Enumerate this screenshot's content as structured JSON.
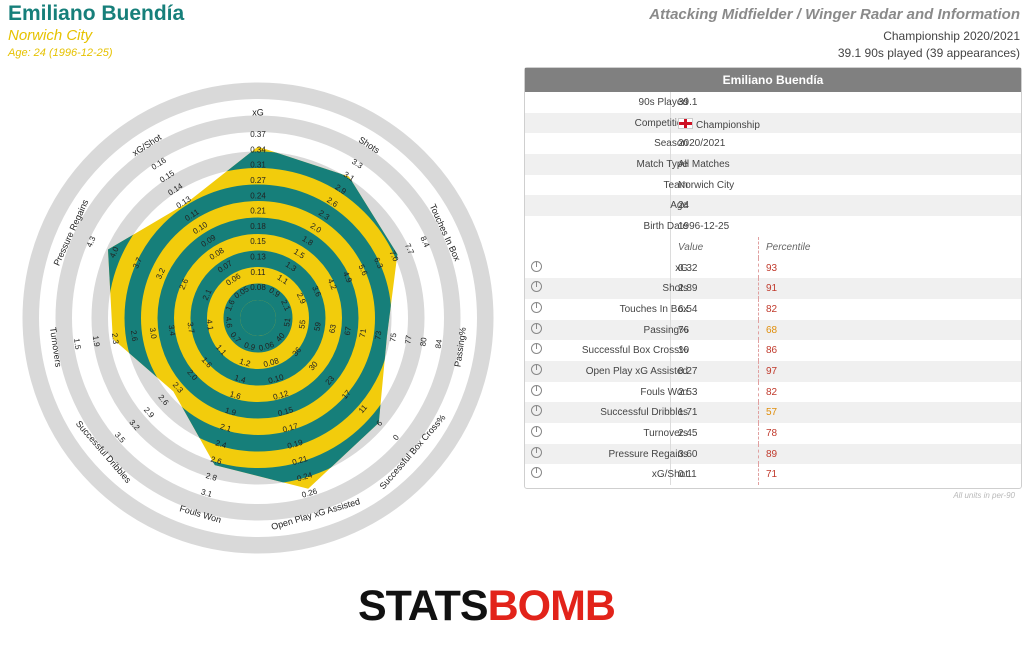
{
  "header": {
    "player_name": "Emiliano Buendía",
    "team": "Norwich City",
    "age_line": "Age: 24 (1996-12-25)",
    "radar_title": "Attacking Midfielder / Winger Radar and Information",
    "competition_line": "Championship 2020/2021",
    "played_line": "39.1 90s played (39 appearances)"
  },
  "colors": {
    "teal": "#167f7a",
    "gold": "#f2cc0c",
    "ring": "#d9d9d9",
    "header_bg": "#808080",
    "pct_red": "#c0392b",
    "pct_orange": "#e08e0b",
    "logo_red": "#e2231a"
  },
  "info": {
    "header": "Emiliano Buendía",
    "rows": [
      {
        "label": "90s Played",
        "value": "39.1"
      },
      {
        "label": "Competition",
        "value": "Championship",
        "icon": "england-flag-icon"
      },
      {
        "label": "Season",
        "value": "2020/2021"
      },
      {
        "label": "Match Type",
        "value": "All Matches"
      },
      {
        "label": "Team",
        "value": "Norwich City"
      },
      {
        "label": "Age",
        "value": "24"
      },
      {
        "label": "Birth Date",
        "value": "1996-12-25"
      }
    ],
    "col_value": "Value",
    "col_percentile": "Percentile",
    "metrics": [
      {
        "label": "xG",
        "value": "0.32",
        "percentile": "93",
        "color": "#c0392b"
      },
      {
        "label": "Shots",
        "value": "2.89",
        "percentile": "91",
        "color": "#c0392b"
      },
      {
        "label": "Touches In Box",
        "value": "6.54",
        "percentile": "82",
        "color": "#c0392b"
      },
      {
        "label": "Passing%",
        "value": "76",
        "percentile": "68",
        "color": "#e08e0b"
      },
      {
        "label": "Successful Box Cross%",
        "value": "10",
        "percentile": "86",
        "color": "#c0392b"
      },
      {
        "label": "Open Play xG Assisted",
        "value": "0.27",
        "percentile": "97",
        "color": "#c0392b"
      },
      {
        "label": "Fouls Won",
        "value": "2.53",
        "percentile": "82",
        "color": "#c0392b"
      },
      {
        "label": "Successful Dribbles",
        "value": "1.71",
        "percentile": "57",
        "color": "#e08e0b"
      },
      {
        "label": "Turnovers",
        "value": "2.45",
        "percentile": "78",
        "color": "#c0392b"
      },
      {
        "label": "Pressure Regains",
        "value": "3.60",
        "percentile": "89",
        "color": "#c0392b"
      },
      {
        "label": "xG/Shot",
        "value": "0.11",
        "percentile": "71",
        "color": "#c0392b"
      }
    ],
    "units_note": "All units in per-90"
  },
  "chart_data": {
    "type": "radar",
    "axes": [
      {
        "name": "xG",
        "ticks": [
          "0.08",
          "0.11",
          "0.13",
          "0.15",
          "0.18",
          "0.21",
          "0.24",
          "0.27",
          "0.31",
          "0.34",
          "0.37"
        ],
        "value": 0.32
      },
      {
        "name": "Shots",
        "ticks": [
          "0.9",
          "1.1",
          "1.3",
          "1.5",
          "1.8",
          "2.0",
          "2.3",
          "2.6",
          "2.9",
          "3.1",
          "3.3"
        ],
        "value": 2.89
      },
      {
        "name": "Touches In Box",
        "ticks": [
          "2.1",
          "2.9",
          "3.6",
          "4.2",
          "4.9",
          "5.6",
          "6.3",
          "7.0",
          "7.7",
          "8.4"
        ],
        "value": 6.54
      },
      {
        "name": "Passing%",
        "ticks": [
          "51",
          "55",
          "59",
          "63",
          "67",
          "71",
          "73",
          "75",
          "77",
          "80",
          "84"
        ],
        "value": 76
      },
      {
        "name": "Successful Box Cross%",
        "ticks": [
          "40",
          "36",
          "30",
          "23",
          "17",
          "11",
          "6",
          "0"
        ],
        "value": 10
      },
      {
        "name": "Open Play xG Assisted",
        "ticks": [
          "0.06",
          "0.08",
          "0.10",
          "0.12",
          "0.15",
          "0.17",
          "0.19",
          "0.21",
          "0.24",
          "0.26"
        ],
        "value": 0.27
      },
      {
        "name": "Fouls Won",
        "ticks": [
          "0.9",
          "1.2",
          "1.4",
          "1.6",
          "1.9",
          "2.1",
          "2.4",
          "2.6",
          "2.8",
          "3.1"
        ],
        "value": 2.53
      },
      {
        "name": "Successful Dribbles",
        "ticks": [
          "0.7",
          "1.1",
          "1.6",
          "2.0",
          "2.3",
          "2.6",
          "2.9",
          "3.2",
          "3.5"
        ],
        "value": 1.71
      },
      {
        "name": "Turnovers",
        "ticks": [
          "4.6",
          "4.1",
          "3.7",
          "3.4",
          "3.0",
          "2.6",
          "2.3",
          "1.9",
          "1.5"
        ],
        "value": 2.45
      },
      {
        "name": "Pressure Regains",
        "ticks": [
          "1.6",
          "2.1",
          "2.6",
          "3.2",
          "3.7",
          "4.0",
          "4.3"
        ],
        "value": 3.6
      },
      {
        "name": "xG/Shot",
        "ticks": [
          "0.05",
          "0.06",
          "0.07",
          "0.08",
          "0.09",
          "0.10",
          "0.11",
          "0.13",
          "0.14",
          "0.15",
          "0.16"
        ],
        "value": 0.11
      }
    ],
    "percentiles": [
      93,
      91,
      82,
      68,
      86,
      97,
      82,
      57,
      78,
      89,
      71
    ]
  },
  "logo": {
    "part1": "STATS",
    "part2": "BOMB"
  }
}
